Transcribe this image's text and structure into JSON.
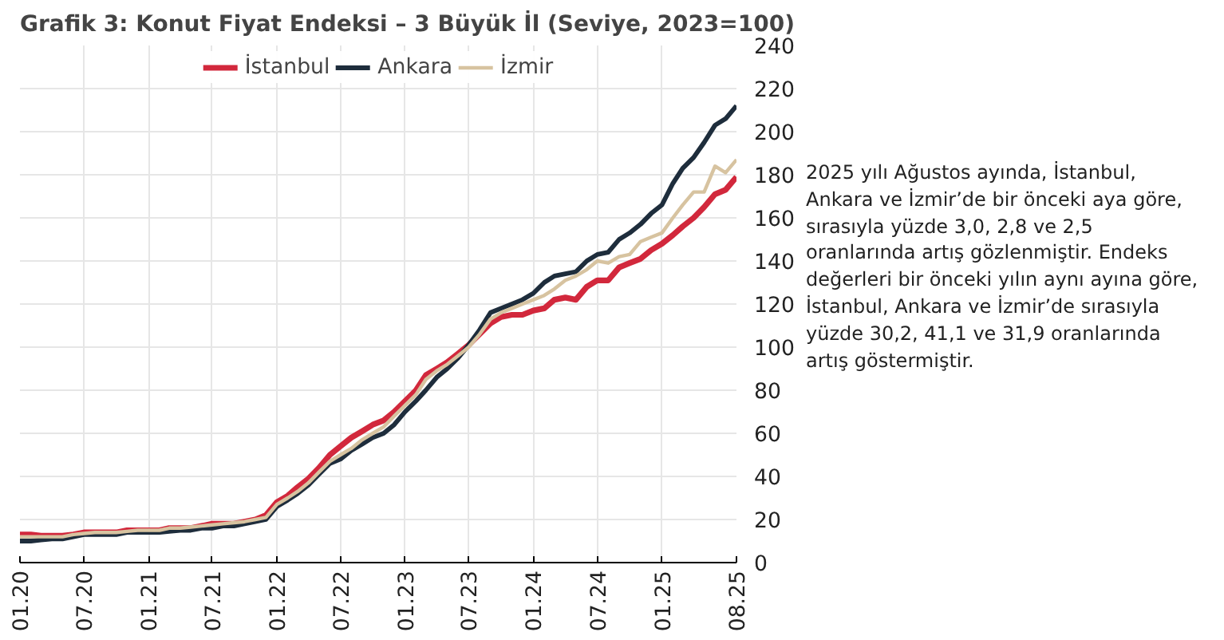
{
  "chart_data": {
    "type": "line",
    "title": "Grafik 3: Konut Fiyat Endeksi – 3 Büyük İl (Seviye, 2023=100)",
    "x": [
      "2020-01",
      "2020-02",
      "2020-03",
      "2020-04",
      "2020-05",
      "2020-06",
      "2020-07",
      "2020-08",
      "2020-09",
      "2020-10",
      "2020-11",
      "2020-12",
      "2021-01",
      "2021-02",
      "2021-03",
      "2021-04",
      "2021-05",
      "2021-06",
      "2021-07",
      "2021-08",
      "2021-09",
      "2021-10",
      "2021-11",
      "2021-12",
      "2022-01",
      "2022-02",
      "2022-03",
      "2022-04",
      "2022-05",
      "2022-06",
      "2022-07",
      "2022-08",
      "2022-09",
      "2022-10",
      "2022-11",
      "2022-12",
      "2023-01",
      "2023-02",
      "2023-03",
      "2023-04",
      "2023-05",
      "2023-06",
      "2023-07",
      "2023-08",
      "2023-09",
      "2023-10",
      "2023-11",
      "2023-12",
      "2024-01",
      "2024-02",
      "2024-03",
      "2024-04",
      "2024-05",
      "2024-06",
      "2024-07",
      "2024-08",
      "2024-09",
      "2024-10",
      "2024-11",
      "2024-12",
      "2025-01",
      "2025-02",
      "2025-03",
      "2025-04",
      "2025-05",
      "2025-06",
      "2025-07",
      "2025-08"
    ],
    "series": [
      {
        "name": "İstanbul",
        "color": "#d2283c",
        "values": [
          13,
          13,
          12.5,
          12.5,
          12.5,
          13,
          14,
          14,
          14,
          14,
          15,
          15,
          15,
          15,
          16,
          16,
          16,
          17,
          18,
          18,
          18,
          19,
          20,
          22,
          28,
          31,
          35,
          39,
          44,
          50,
          54,
          58,
          61,
          64,
          66,
          70,
          75,
          80,
          87,
          90,
          93,
          97,
          101,
          106,
          111,
          114,
          115,
          115,
          117,
          118,
          122,
          123,
          122,
          128,
          131,
          131,
          137,
          139,
          141,
          145,
          148,
          152,
          156,
          160,
          165,
          171,
          173,
          179
        ]
      },
      {
        "name": "Ankara",
        "color": "#1e2d3c",
        "values": [
          10,
          10,
          10.5,
          11,
          11,
          12,
          13,
          13,
          13,
          13,
          14,
          14,
          14,
          14,
          14.5,
          15,
          15,
          16,
          16,
          17,
          17,
          18,
          19,
          20,
          26,
          29,
          32,
          36,
          41,
          46,
          48,
          52,
          55,
          58,
          60,
          64,
          70,
          75,
          80,
          86,
          90,
          95,
          101,
          108,
          116,
          118,
          120,
          122,
          125,
          130,
          133,
          134,
          135,
          140,
          143,
          144,
          150,
          153,
          157,
          162,
          166,
          176,
          183,
          188,
          195,
          203,
          206,
          212
        ]
      },
      {
        "name": "İzmir",
        "color": "#d7c3a0",
        "values": [
          12,
          12,
          12,
          12,
          12,
          13,
          13.5,
          14,
          14,
          14,
          14.5,
          15,
          15,
          15,
          16,
          16,
          16.5,
          17,
          17.5,
          18,
          18.5,
          19,
          20,
          21,
          27,
          30,
          33,
          37,
          42,
          47,
          50,
          53,
          57,
          60,
          63,
          68,
          73,
          78,
          85,
          89,
          92,
          96,
          100,
          106,
          113,
          116,
          118,
          120,
          122,
          124,
          127,
          131,
          133,
          136,
          140,
          139,
          142,
          143,
          149,
          151,
          153,
          160,
          166,
          172,
          172,
          184,
          181,
          187
        ]
      }
    ],
    "xlim": [
      "2020-01",
      "2025-08"
    ],
    "xticks": [
      {
        "value": "2020-01",
        "label": "01.20"
      },
      {
        "value": "2020-07",
        "label": "07.20"
      },
      {
        "value": "2021-01",
        "label": "01.21"
      },
      {
        "value": "2021-07",
        "label": "07.21"
      },
      {
        "value": "2022-01",
        "label": "01.22"
      },
      {
        "value": "2022-07",
        "label": "07.22"
      },
      {
        "value": "2023-01",
        "label": "01.23"
      },
      {
        "value": "2023-07",
        "label": "07.23"
      },
      {
        "value": "2024-01",
        "label": "01.24"
      },
      {
        "value": "2024-07",
        "label": "07.24"
      },
      {
        "value": "2025-01",
        "label": "01.25"
      },
      {
        "value": "2025-08",
        "label": "08.25"
      }
    ],
    "ylim": [
      0,
      240
    ],
    "yticks": [
      0,
      20,
      40,
      60,
      80,
      100,
      120,
      140,
      160,
      180,
      200,
      220,
      240
    ],
    "grid": true,
    "legend": "top",
    "annotations": [
      "2025 yılı Ağustos ayında, İstanbul, Ankara ve İzmir’de bir önceki aya göre, sırasıyla yüzde 3,0, 2,8 ve 2,5 oranlarında artış gözlenmiştir. Endeks değerleri bir önceki yılın aynı ayına göre, İstanbul, Ankara ve İzmir’de sırasıyla yüzde 30,2, 41,1 ve 31,9 oranlarında artış göstermiştir."
    ]
  }
}
